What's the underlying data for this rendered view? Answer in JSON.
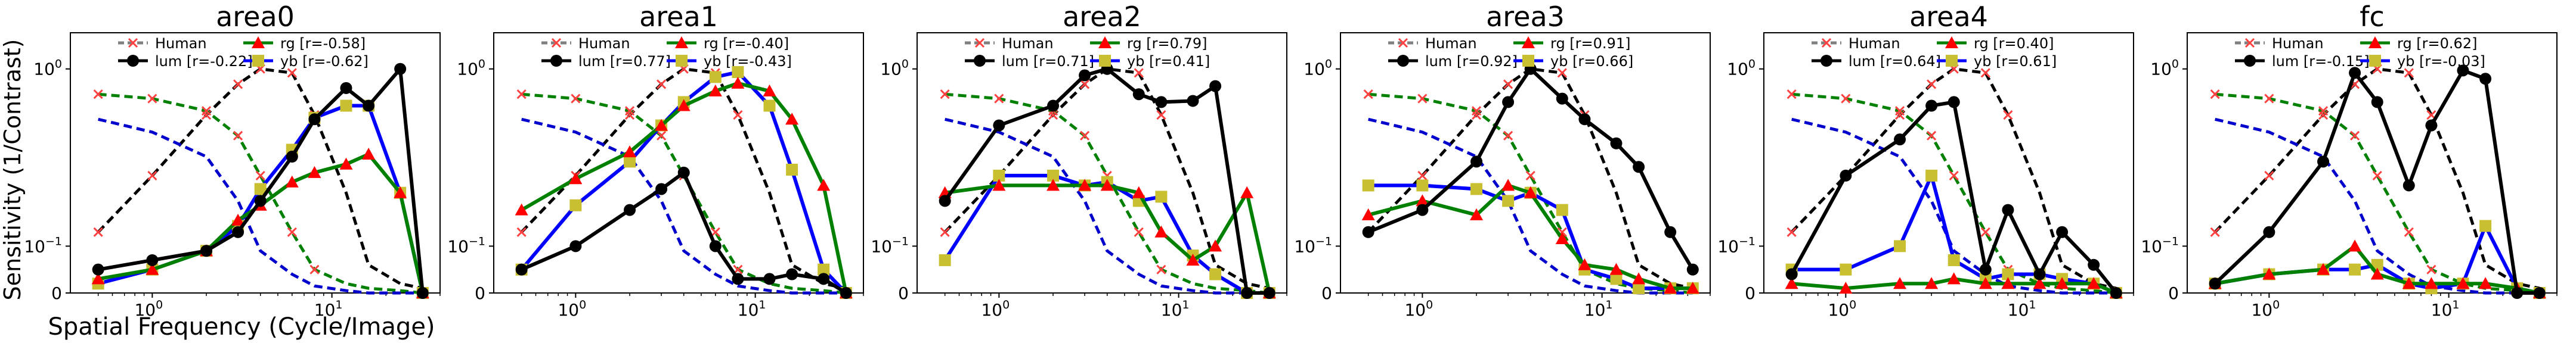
{
  "figure": {
    "ylabel": "Sensitivity (1/Contrast)",
    "xlabel": "Spatial Frequency (Cycle/Image)"
  },
  "colors": {
    "Human": "#808080",
    "lum": "#000000",
    "rg": "#008000",
    "yb": "#0000ff",
    "human_marker": "#ff4040",
    "rg_marker": "#ff0000",
    "yb_marker": "#c8c030",
    "human_achrom": "#000000",
    "human_rg": "#008000",
    "human_yb": "#0000cc"
  },
  "chart_data": [
    {
      "type": "line",
      "title": "area0",
      "xscale": "log",
      "yscale": "symlog",
      "xticks": [
        "10^0",
        "10^1"
      ],
      "yticks": [
        "0",
        "10^-1",
        "10^0"
      ],
      "legend": [
        "Human",
        "lum [r=-0.22]",
        "rg    [r=-0.58]",
        "yb    [r=-0.62]"
      ],
      "legend_loc": "upper center",
      "x": [
        0.5,
        1,
        2,
        3,
        4,
        6,
        8,
        12,
        16,
        24,
        32
      ],
      "series": [
        {
          "name": "lum",
          "values": [
            0.05,
            0.07,
            0.09,
            0.12,
            0.18,
            0.32,
            0.52,
            0.78,
            0.62,
            1.0,
            0.0
          ]
        },
        {
          "name": "rg",
          "values": [
            0.03,
            0.05,
            0.09,
            0.14,
            0.17,
            0.23,
            0.26,
            0.29,
            0.33,
            0.2,
            0.0
          ]
        },
        {
          "name": "yb",
          "values": [
            0.02,
            0.05,
            0.09,
            0.13,
            0.21,
            0.35,
            0.53,
            0.62,
            0.62,
            0.2,
            0.0
          ]
        }
      ]
    },
    {
      "type": "line",
      "title": "area1",
      "xscale": "log",
      "yscale": "symlog",
      "xticks": [
        "10^0",
        "10^1"
      ],
      "yticks": [
        "0",
        "10^-1",
        "10^0"
      ],
      "legend": [
        "Human",
        "lum [r=0.77]",
        "rg    [r=-0.40]",
        "yb    [r=-0.43]"
      ],
      "legend_loc": "upper center",
      "x": [
        0.5,
        1,
        2,
        3,
        4,
        6,
        8,
        12,
        16,
        24,
        32
      ],
      "series": [
        {
          "name": "lum",
          "values": [
            0.05,
            0.1,
            0.16,
            0.21,
            0.26,
            0.1,
            0.03,
            0.03,
            0.04,
            0.03,
            0.0
          ]
        },
        {
          "name": "rg",
          "values": [
            0.16,
            0.24,
            0.34,
            0.48,
            0.62,
            0.75,
            0.83,
            0.75,
            0.52,
            0.22,
            0.0
          ]
        },
        {
          "name": "yb",
          "values": [
            0.05,
            0.17,
            0.3,
            0.48,
            0.65,
            0.9,
            0.96,
            0.62,
            0.27,
            0.05,
            0.0
          ]
        }
      ]
    },
    {
      "type": "line",
      "title": "area2",
      "xscale": "log",
      "yscale": "symlog",
      "xticks": [
        "10^0",
        "10^1"
      ],
      "yticks": [
        "0",
        "10^-1",
        "10^0"
      ],
      "legend": [
        "Human",
        "lum [r=0.71]",
        "rg    [r=0.79]",
        "yb    [r=0.41]"
      ],
      "legend_loc": "upper center",
      "x": [
        0.5,
        1,
        2,
        3,
        4,
        6,
        8,
        12,
        16,
        24,
        32
      ],
      "series": [
        {
          "name": "lum",
          "values": [
            0.18,
            0.48,
            0.62,
            0.92,
            1.0,
            0.72,
            0.65,
            0.66,
            0.8,
            0.0,
            0.0
          ]
        },
        {
          "name": "rg",
          "values": [
            0.2,
            0.22,
            0.22,
            0.22,
            0.22,
            0.2,
            0.12,
            0.07,
            0.1,
            0.2,
            0.0
          ]
        },
        {
          "name": "yb",
          "values": [
            0.07,
            0.25,
            0.25,
            0.22,
            0.23,
            0.18,
            0.19,
            0.08,
            0.04,
            0.0,
            0.0
          ]
        }
      ]
    },
    {
      "type": "line",
      "title": "area3",
      "xscale": "log",
      "yscale": "symlog",
      "xticks": [
        "10^0",
        "10^1"
      ],
      "yticks": [
        "0",
        "10^-1",
        "10^0"
      ],
      "legend": [
        "Human",
        "lum [r=0.92]",
        "rg    [r=0.91]",
        "yb    [r=0.66]"
      ],
      "legend_loc": "upper center",
      "x": [
        0.5,
        1,
        2,
        3,
        4,
        6,
        8,
        12,
        16,
        24,
        32
      ],
      "series": [
        {
          "name": "lum",
          "values": [
            0.12,
            0.16,
            0.3,
            0.65,
            1.0,
            0.68,
            0.52,
            0.38,
            0.28,
            0.12,
            0.05
          ]
        },
        {
          "name": "rg",
          "values": [
            0.15,
            0.18,
            0.15,
            0.22,
            0.2,
            0.11,
            0.06,
            0.05,
            0.03,
            0.01,
            0.01
          ]
        },
        {
          "name": "yb",
          "values": [
            0.22,
            0.22,
            0.21,
            0.18,
            0.2,
            0.16,
            0.05,
            0.03,
            0.01,
            0.01,
            0.01
          ]
        }
      ]
    },
    {
      "type": "line",
      "title": "area4",
      "xscale": "log",
      "yscale": "symlog",
      "xticks": [
        "10^0",
        "10^1"
      ],
      "yticks": [
        "0",
        "10^-1",
        "10^0"
      ],
      "legend": [
        "Human",
        "lum [r=0.64]",
        "rg    [r=0.40]",
        "yb    [r=0.61]"
      ],
      "legend_loc": "upper center",
      "x": [
        0.5,
        1,
        2,
        3,
        4,
        6,
        8,
        12,
        16,
        24,
        32
      ],
      "series": [
        {
          "name": "lum",
          "values": [
            0.04,
            0.25,
            0.4,
            0.62,
            0.65,
            0.05,
            0.16,
            0.04,
            0.12,
            0.06,
            0.0
          ]
        },
        {
          "name": "rg",
          "values": [
            0.02,
            0.01,
            0.02,
            0.02,
            0.03,
            0.02,
            0.02,
            0.02,
            0.02,
            0.02,
            0.0
          ]
        },
        {
          "name": "yb",
          "values": [
            0.05,
            0.05,
            0.1,
            0.25,
            0.07,
            0.03,
            0.04,
            0.04,
            0.03,
            0.02,
            0.0
          ]
        }
      ]
    },
    {
      "type": "line",
      "title": "fc",
      "xscale": "log",
      "yscale": "symlog",
      "xticks": [
        "10^0",
        "10^1"
      ],
      "yticks": [
        "0",
        "10^-1",
        "10^0"
      ],
      "legend": [
        "Human",
        "lum [r=-0.15]",
        "rg    [r=0.62]",
        "yb    [r=-0.03]"
      ],
      "legend_loc": "upper center",
      "x": [
        0.5,
        1,
        2,
        3,
        4,
        6,
        8,
        12,
        16,
        24,
        32
      ],
      "series": [
        {
          "name": "lum",
          "values": [
            0.02,
            0.12,
            0.3,
            0.95,
            0.65,
            0.22,
            0.48,
            0.98,
            0.88,
            0.0,
            0.0
          ]
        },
        {
          "name": "rg",
          "values": [
            0.02,
            0.04,
            0.05,
            0.1,
            0.04,
            0.02,
            0.02,
            0.02,
            0.02,
            0.01,
            0.0
          ]
        },
        {
          "name": "yb",
          "values": [
            0.02,
            0.04,
            0.05,
            0.05,
            0.06,
            0.02,
            0.01,
            0.02,
            0.13,
            0.01,
            0.0
          ]
        }
      ]
    }
  ],
  "human_curves": {
    "achromatic": {
      "x": [
        0.5,
        1,
        2,
        3,
        4,
        6,
        8,
        12,
        16,
        24,
        32
      ],
      "values": [
        0.12,
        0.25,
        0.55,
        0.82,
        1.0,
        0.95,
        0.55,
        0.2,
        0.06,
        0.02,
        0.01
      ]
    },
    "rg": {
      "x": [
        0.5,
        1,
        2,
        3,
        4,
        6,
        8,
        12,
        16,
        24,
        32
      ],
      "values": [
        0.72,
        0.68,
        0.58,
        0.42,
        0.25,
        0.12,
        0.05,
        0.02,
        0.01,
        0.005,
        0.0
      ]
    },
    "yb": {
      "x": [
        0.5,
        1,
        2,
        3,
        4,
        6,
        8,
        12,
        16,
        24,
        32
      ],
      "values": [
        0.52,
        0.44,
        0.32,
        0.18,
        0.09,
        0.04,
        0.015,
        0.005,
        0.0,
        0.0,
        0.0
      ]
    }
  }
}
